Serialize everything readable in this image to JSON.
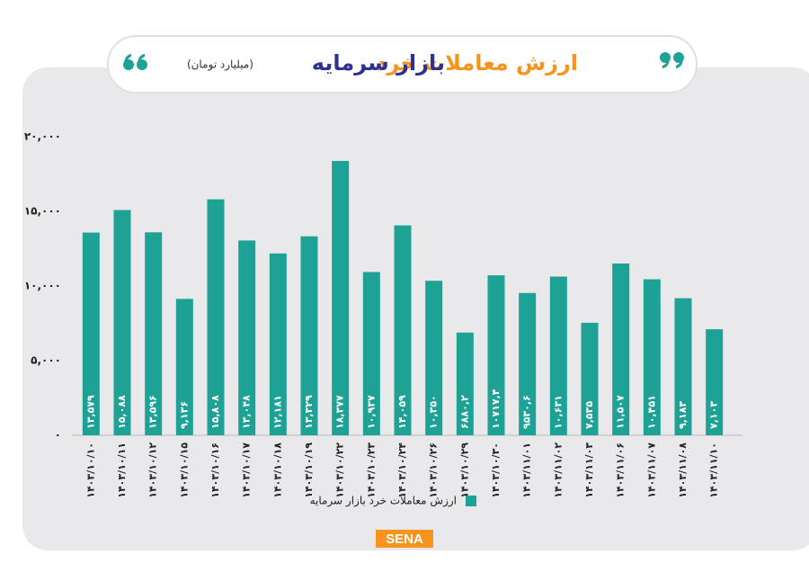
{
  "chart_data": {
    "type": "bar",
    "title": "ارزش معاملات خرد",
    "title_2": "بازار سرمایه",
    "subtitle": "(میلیارد تومان)",
    "logo": "SENA",
    "categories": [
      "۱۴۰۳/۱۰/۱۰",
      "۱۴۰۳/۱۰/۱۱",
      "۱۴۰۳/۱۰/۱۲",
      "۱۴۰۳/۱۰/۱۵",
      "۱۴۰۳/۱۰/۱۶",
      "۱۴۰۳/۱۰/۱۷",
      "۱۴۰۳/۱۰/۱۸",
      "۱۴۰۳/۱۰/۱۹",
      "۱۴۰۳/۱۰/۲۲",
      "۱۴۰۳/۱۰/۲۳",
      "۱۴۰۳/۱۰/۲۴",
      "۱۴۰۳/۱۰/۲۶",
      "۱۴۰۳/۱۰/۲۹",
      "۱۴۰۳/۱۰/۳۰",
      "۱۴۰۳/۱۱/۰۱",
      "۱۴۰۳/۱۱/۰۲",
      "۱۴۰۳/۱۱/۰۳",
      "۱۴۰۳/۱۱/۰۶",
      "۱۴۰۳/۱۱/۰۷",
      "۱۴۰۳/۱۱/۰۸",
      "۱۴۰۳/۱۱/۱۰"
    ],
    "series": [
      {
        "name": "ارزش معاملات خرد بازار سرمایه",
        "color": "#1fa296",
        "values": [
          13579,
          15088,
          13596,
          9136,
          15808,
          13048,
          12181,
          13329,
          18377,
          10937,
          14059,
          10350,
          6880.2,
          10717.4,
          9530.6,
          10631,
          7535,
          11507,
          10451,
          9183,
          7103
        ],
        "value_labels": [
          "۱۳,۵۷۹",
          "۱۵,۰۸۸",
          "۱۳,۵۹۶",
          "۹,۱۳۶",
          "۱۵,۸۰۸",
          "۱۳,۰۴۸",
          "۱۲,۱۸۱",
          "۱۳,۳۲۹",
          "۱۸,۳۷۷",
          "۱۰,۹۳۷",
          "۱۴,۰۵۹",
          "۱۰,۳۵۰",
          "۶۸۸۰,۲",
          "۱۰۷۱۷,۴",
          "۹۵۳۰,۶",
          "۱۰,۶۳۱",
          "۷,۵۳۵",
          "۱۱,۵۰۷",
          "۱۰,۴۵۱",
          "۹,۱۸۳",
          "۷,۱۰۳"
        ]
      }
    ],
    "ylim": [
      0,
      20000
    ],
    "yticks": [
      {
        "value": 0,
        "label": "۰"
      },
      {
        "value": 5000,
        "label": "۵,۰۰۰"
      },
      {
        "value": 10000,
        "label": "۱۰,۰۰۰"
      },
      {
        "value": 15000,
        "label": "۱۵,۰۰۰"
      },
      {
        "value": 20000,
        "label": "۲۰,۰۰۰"
      }
    ],
    "grid": false
  }
}
